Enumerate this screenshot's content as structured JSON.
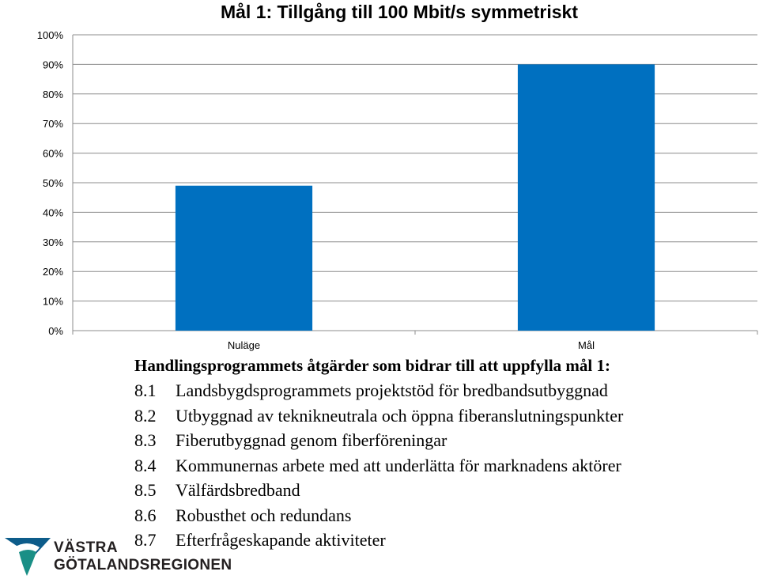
{
  "chart_data": {
    "type": "bar",
    "title": "Mål 1: Tillgång till 100 Mbit/s symmetriskt",
    "categories": [
      "Nuläge",
      "Mål"
    ],
    "values": [
      49,
      90
    ],
    "unit": "%",
    "ylim": [
      0,
      100
    ],
    "yticks": [
      "0%",
      "10%",
      "20%",
      "30%",
      "40%",
      "50%",
      "60%",
      "70%",
      "80%",
      "90%",
      "100%"
    ],
    "grid": true,
    "legend": "none",
    "bar_color": "#0070c0"
  },
  "actions": {
    "heading": "Handlingsprogrammets åtgärder som bidrar till att uppfylla mål 1:",
    "items": [
      {
        "num": "8.1",
        "text": "Landsbygdsprogrammets projektstöd för bredbandsutbyggnad"
      },
      {
        "num": "8.2",
        "text": "Utbyggnad av teknikneutrala och öppna fiberanslutningspunkter"
      },
      {
        "num": "8.3",
        "text": "Fiberutbyggnad genom fiberföreningar"
      },
      {
        "num": "8.4",
        "text": "Kommunernas arbete med att underlätta för marknadens aktörer"
      },
      {
        "num": "8.5",
        "text": "Välfärdsbredband"
      },
      {
        "num": "8.6",
        "text": "Robusthet och redundans"
      },
      {
        "num": "8.7",
        "text": "Efterfrågeskapande aktiviteter"
      }
    ]
  },
  "logo": {
    "line1": "VÄSTRA",
    "line2": "GÖTALANDSREGIONEN",
    "colors": {
      "blue": "#0d5c8a",
      "green": "#1a8f86"
    }
  }
}
